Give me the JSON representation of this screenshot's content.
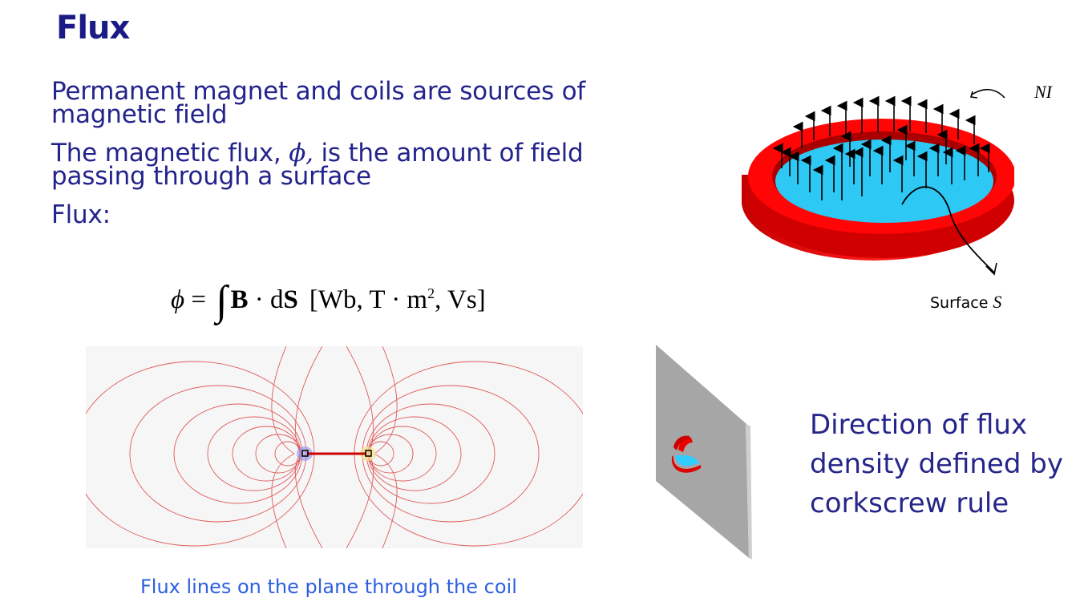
{
  "slide": {
    "title": "Flux",
    "bullets": [
      "Permanent magnet and coils are sources of magnetic field",
      "The magnetic flux, ",
      " is the amount of field passing through a surface",
      "Flux:"
    ],
    "phi_symbol": "ϕ,",
    "formula": {
      "phi": "ϕ",
      "equals": " = ",
      "integral": "∫",
      "B": "B",
      "dot": " · ",
      "dS": "dS",
      "units_prefix": "[Wb, T · m",
      "units_exp": "2",
      "units_suffix": ", Vs]"
    },
    "caption": "Flux lines on the plane through the coil",
    "corkscrew_text": [
      "Direction of flux",
      "density defined by",
      "corkscrew rule"
    ],
    "surface_label": "Surface ",
    "surface_symbol": "S",
    "ni_label": "NI",
    "colors": {
      "title": "#1b1b86",
      "text": "#23238c",
      "caption": "#2e5fe0",
      "coil_red": "#ff0000",
      "surface_cyan": "#33ccff"
    }
  }
}
